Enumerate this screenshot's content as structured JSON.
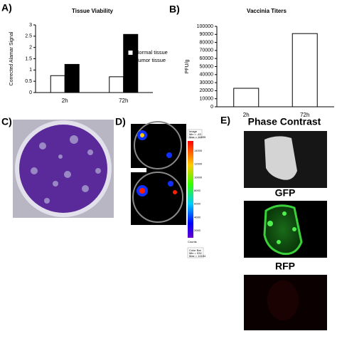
{
  "panels": {
    "a": "A)",
    "b": "B)",
    "c": "C)",
    "d": "D)",
    "e": "E)"
  },
  "chart_data": [
    {
      "type": "bar",
      "title": "Tissue Viability",
      "y_label": "Corrected Alamar Signal",
      "categories": [
        "2h",
        "72h"
      ],
      "series": [
        {
          "name": "Normal tissue",
          "color": "#ffffff",
          "values": [
            0.75,
            0.7
          ]
        },
        {
          "name": "Tumor tissue",
          "color": "#000000",
          "values": [
            1.25,
            2.58
          ]
        }
      ],
      "ylim": [
        0,
        3
      ],
      "yticks": [
        0,
        0.5,
        1,
        1.5,
        2,
        2.5,
        3
      ],
      "legend": "right"
    },
    {
      "type": "bar",
      "title": "Vaccinia Titers",
      "y_label": "PFU/g",
      "categories": [
        "2h",
        "72h"
      ],
      "values": [
        23000,
        91000
      ],
      "color": "#ffffff",
      "ylim": [
        0,
        100000
      ],
      "yticks": [
        0,
        10000,
        20000,
        30000,
        40000,
        50000,
        60000,
        70000,
        80000,
        90000,
        100000
      ]
    }
  ],
  "colorbar": {
    "image_box": [
      "Image",
      "Min = -43",
      "Max = 16635"
    ],
    "ticks": [
      "14000",
      "12000",
      "10000",
      "8000",
      "6000",
      "4000",
      "2000"
    ],
    "unit": "Counts",
    "color_bar_box": [
      "Color Bar",
      "Min = 932",
      "Max = 14104"
    ]
  },
  "image_labels": {
    "phase": "Phase Contrast",
    "gfp": "GFP",
    "rfp": "RFP"
  }
}
